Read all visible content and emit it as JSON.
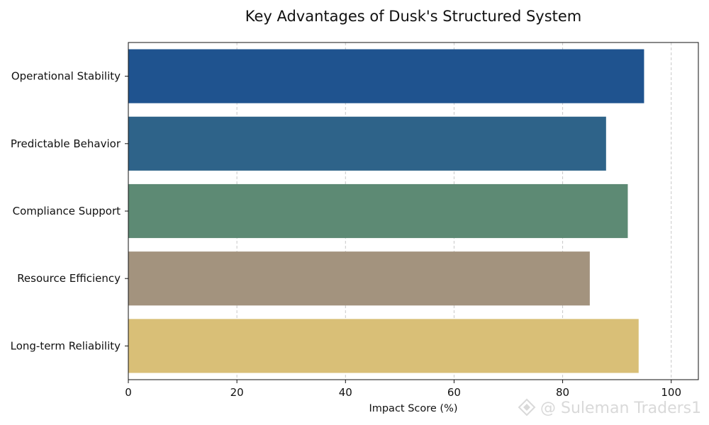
{
  "chart_data": {
    "type": "bar",
    "orientation": "horizontal",
    "title": "Key Advantages of Dusk's Structured System",
    "xlabel": "Impact Score (%)",
    "ylabel": "",
    "xlim": [
      0,
      105
    ],
    "xticks": [
      0,
      20,
      40,
      60,
      80,
      100
    ],
    "grid": "x",
    "categories": [
      "Operational Stability",
      "Predictable Behavior",
      "Compliance Support",
      "Resource Efficiency",
      "Long-term Reliability"
    ],
    "values": [
      95,
      88,
      92,
      85,
      94
    ],
    "colors": [
      "#1f538f",
      "#2e6389",
      "#5d8a74",
      "#a3937e",
      "#d9bf77"
    ]
  },
  "watermark": {
    "text": "@ Suleman Traders1"
  }
}
